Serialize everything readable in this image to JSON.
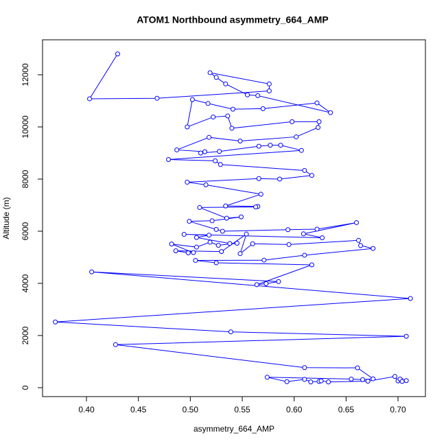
{
  "chart_data": {
    "type": "line",
    "title": "ATOM1 Northbound asymmetry_664_AMP",
    "xlabel": "asymmetry_664_AMP",
    "ylabel": "Altitude (m)",
    "color": "#0000ff",
    "markers": true,
    "xlim": [
      0.3577,
      0.7264
    ],
    "ylim": [
      -342,
      13342
    ],
    "xticks": [
      {
        "value": 0.4,
        "label": "0.40"
      },
      {
        "value": 0.45,
        "label": "0.45"
      },
      {
        "value": 0.5,
        "label": "0.50"
      },
      {
        "value": 0.55,
        "label": "0.55"
      },
      {
        "value": 0.6,
        "label": "0.60"
      },
      {
        "value": 0.65,
        "label": "0.65"
      },
      {
        "value": 0.7,
        "label": "0.70"
      }
    ],
    "yticks": [
      0,
      2000,
      4000,
      6000,
      8000,
      10000,
      12000
    ],
    "x": [
      0.43,
      0.403,
      0.468,
      0.576,
      0.576,
      0.519,
      0.525,
      0.534,
      0.555,
      0.565,
      0.635,
      0.622,
      0.57,
      0.541,
      0.517,
      0.502,
      0.497,
      0.522,
      0.536,
      0.54,
      0.598,
      0.624,
      0.623,
      0.602,
      0.548,
      0.518,
      0.487,
      0.514,
      0.51,
      0.528,
      0.566,
      0.577,
      0.587,
      0.607,
      0.479,
      0.524,
      0.529,
      0.61,
      0.617,
      0.586,
      0.566,
      0.497,
      0.515,
      0.568,
      0.534,
      0.565,
      0.563,
      0.509,
      0.535,
      0.549,
      0.521,
      0.499,
      0.525,
      0.531,
      0.594,
      0.622,
      0.66,
      0.609,
      0.627,
      0.494,
      0.518,
      0.506,
      0.538,
      0.545,
      0.527,
      0.519,
      0.506,
      0.482,
      0.503,
      0.498,
      0.486,
      0.53,
      0.554,
      0.548,
      0.56,
      0.595,
      0.662,
      0.664,
      0.676,
      0.61,
      0.571,
      0.505,
      0.525,
      0.617,
      0.564,
      0.573,
      0.585,
      0.405,
      0.712,
      0.37,
      0.539,
      0.708,
      0.428,
      0.61,
      0.661,
      0.676,
      0.666,
      0.655,
      0.574,
      0.593,
      0.61,
      0.616,
      0.624,
      0.626,
      0.633,
      0.671,
      0.697,
      0.7,
      0.703,
      0.702,
      0.708,
      0.704
    ],
    "series": [
      {
        "name": "asymmetry_664_AMP",
        "color": "#0000ff",
        "values": [
          12800,
          11080,
          11100,
          11380,
          11650,
          12080,
          11900,
          11650,
          11230,
          11200,
          10550,
          10920,
          10700,
          10680,
          10900,
          11050,
          10000,
          10380,
          10420,
          9950,
          10200,
          10200,
          9980,
          9620,
          9460,
          9600,
          9120,
          9050,
          9000,
          9060,
          9260,
          9300,
          9300,
          9100,
          8750,
          8700,
          8560,
          8330,
          8140,
          8000,
          8020,
          7880,
          7780,
          7420,
          6970,
          6950,
          6930,
          6910,
          6500,
          6550,
          6400,
          6380,
          6070,
          6000,
          6060,
          6080,
          6330,
          5900,
          5750,
          5880,
          5850,
          5760,
          5530,
          5540,
          5460,
          5580,
          5390,
          5510,
          5180,
          5170,
          5250,
          5220,
          5890,
          5140,
          5520,
          5490,
          5650,
          5450,
          5340,
          5080,
          4890,
          4880,
          4790,
          4710,
          3950,
          3990,
          4070,
          4440,
          3420,
          2520,
          2140,
          1970,
          1650,
          770,
          760,
          340,
          310,
          330,
          400,
          230,
          320,
          220,
          240,
          260,
          220,
          250,
          430,
          260,
          290,
          330,
          270,
          240
        ]
      }
    ]
  }
}
